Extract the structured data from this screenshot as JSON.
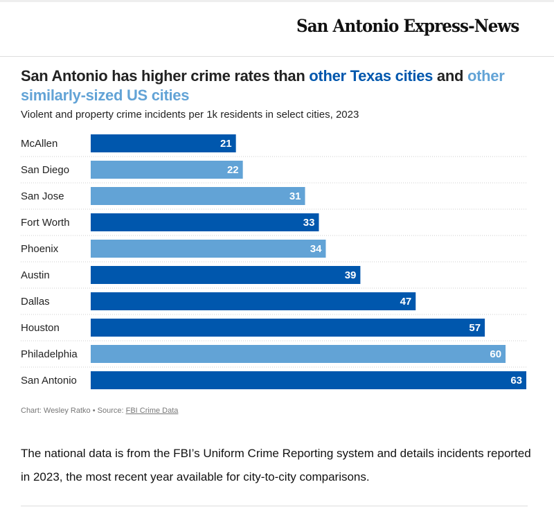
{
  "masthead": {
    "logo": "San Antonio Express-News"
  },
  "title": {
    "part1": "San Antonio has higher crime rates than ",
    "part2": "other Texas cities",
    "part3": " and ",
    "part4": "other similarly-sized US cities"
  },
  "subtitle": "Violent and property crime incidents per 1k residents in select cities, 2023",
  "colors": {
    "texas": "#0057ad",
    "us": "#62a3d6",
    "label_text": "#ffffff"
  },
  "chart_data": {
    "type": "bar",
    "orientation": "horizontal",
    "categories": [
      "McAllen",
      "San Diego",
      "San Jose",
      "Fort Worth",
      "Phoenix",
      "Austin",
      "Dallas",
      "Houston",
      "Philadelphia",
      "San Antonio"
    ],
    "values": [
      21,
      22,
      31,
      33,
      34,
      39,
      47,
      57,
      60,
      63
    ],
    "groups": [
      "texas",
      "us",
      "us",
      "texas",
      "us",
      "texas",
      "texas",
      "texas",
      "us",
      "texas"
    ],
    "xlim": [
      0,
      63
    ],
    "grid": false
  },
  "credit": {
    "prefix": "Chart: Wesley Ratko • Source: ",
    "link": "FBI Crime Data"
  },
  "body": "The national data is from the FBI’s Uniform Crime Reporting system and details incidents reported in 2023, the most recent year available for city-to-city comparisons."
}
